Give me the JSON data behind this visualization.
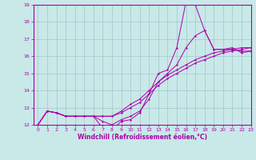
{
  "xlabel": "Windchill (Refroidissement éolien,°C)",
  "ylabel": "",
  "xlim": [
    -0.5,
    23
  ],
  "ylim": [
    12,
    19
  ],
  "yticks": [
    12,
    13,
    14,
    15,
    16,
    17,
    18,
    19
  ],
  "xticks": [
    0,
    1,
    2,
    3,
    4,
    5,
    6,
    7,
    8,
    9,
    10,
    11,
    12,
    13,
    14,
    15,
    16,
    17,
    18,
    19,
    20,
    21,
    22,
    23
  ],
  "background_color": "#c9e8e8",
  "line_color": "#aa00aa",
  "grid_color": "#a0c8c8",
  "lines": [
    {
      "x": [
        0,
        1,
        2,
        3,
        4,
        5,
        6,
        7,
        8,
        9,
        10,
        11,
        12,
        13,
        14,
        15,
        16,
        17,
        18,
        19,
        20,
        21,
        22,
        23
      ],
      "y": [
        12.0,
        12.8,
        12.7,
        12.5,
        12.5,
        12.5,
        12.5,
        11.8,
        11.7,
        12.2,
        12.3,
        12.7,
        13.8,
        15.0,
        15.2,
        16.5,
        19.2,
        19.0,
        17.5,
        16.4,
        16.4,
        16.5,
        16.2,
        16.3
      ]
    },
    {
      "x": [
        0,
        1,
        2,
        3,
        4,
        5,
        6,
        7,
        8,
        9,
        10,
        11,
        12,
        13,
        14,
        15,
        16,
        17,
        18,
        19,
        20,
        21,
        22,
        23
      ],
      "y": [
        12.0,
        12.8,
        12.7,
        12.5,
        12.5,
        12.5,
        12.5,
        12.2,
        12.0,
        12.3,
        12.5,
        12.8,
        13.5,
        14.5,
        15.0,
        15.5,
        16.5,
        17.2,
        17.5,
        16.4,
        16.4,
        16.4,
        16.3,
        16.3
      ]
    },
    {
      "x": [
        0,
        1,
        2,
        3,
        4,
        5,
        6,
        7,
        8,
        9,
        10,
        11,
        12,
        13,
        14,
        15,
        16,
        17,
        18,
        19,
        20,
        21,
        22,
        23
      ],
      "y": [
        12.0,
        12.8,
        12.7,
        12.5,
        12.5,
        12.5,
        12.5,
        12.5,
        12.5,
        12.7,
        13.0,
        13.3,
        13.8,
        14.3,
        14.7,
        15.0,
        15.3,
        15.6,
        15.8,
        16.0,
        16.2,
        16.3,
        16.4,
        16.5
      ]
    },
    {
      "x": [
        0,
        1,
        2,
        3,
        4,
        5,
        6,
        7,
        8,
        9,
        10,
        11,
        12,
        13,
        14,
        15,
        16,
        17,
        18,
        19,
        20,
        21,
        22,
        23
      ],
      "y": [
        12.0,
        12.8,
        12.7,
        12.5,
        12.5,
        12.5,
        12.5,
        12.5,
        12.5,
        12.8,
        13.2,
        13.5,
        14.0,
        14.5,
        14.9,
        15.2,
        15.5,
        15.8,
        16.0,
        16.2,
        16.3,
        16.4,
        16.5,
        16.5
      ]
    }
  ]
}
